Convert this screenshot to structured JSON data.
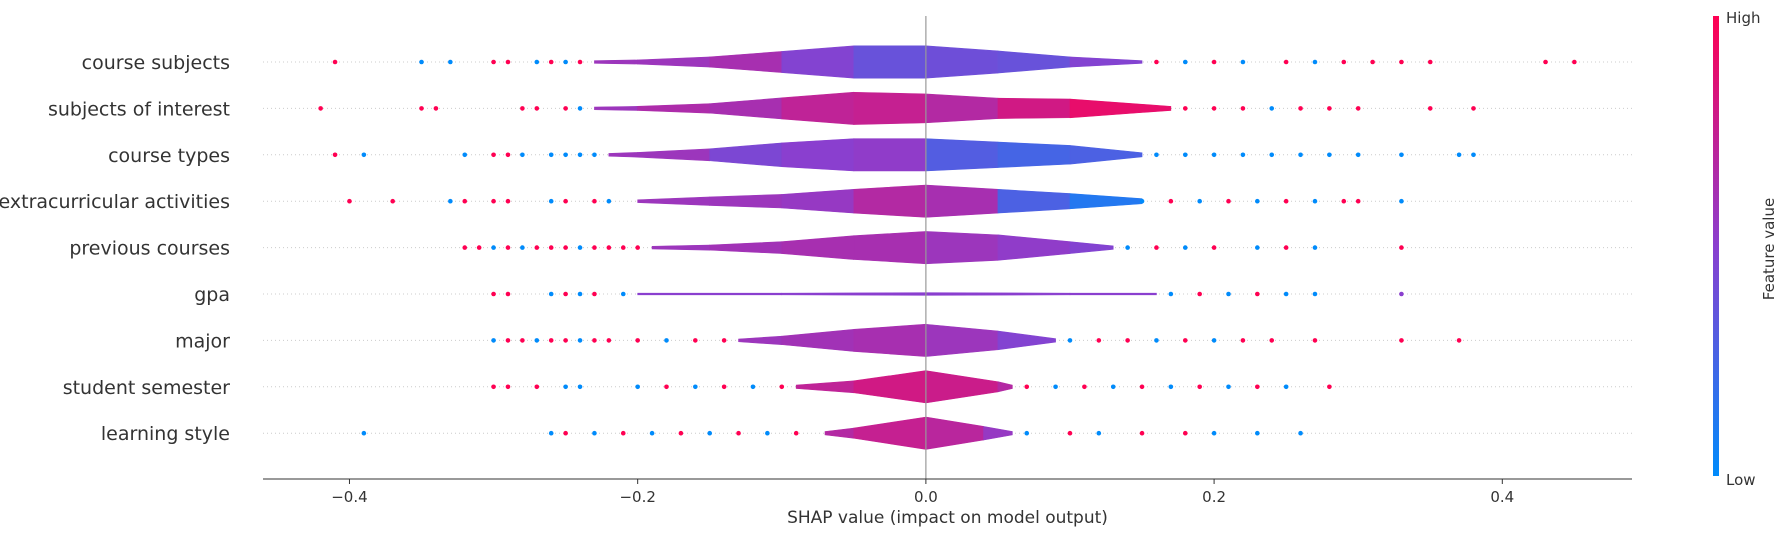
{
  "chart_data": {
    "type": "scatter",
    "subtype": "shap-violin-summary",
    "xlabel": "SHAP value (impact on model output)",
    "xlim": [
      -0.46,
      0.49
    ],
    "x_ticks": [
      -0.4,
      -0.2,
      0.0,
      0.2,
      0.4
    ],
    "x_tick_labels": [
      "−0.4",
      "−0.2",
      "0.0",
      "0.2",
      "0.4"
    ],
    "grid": "dotted horizontal row guides",
    "colorbar": {
      "title": "Feature value",
      "high_label": "High",
      "low_label": "Low",
      "high_color": "#ff0052",
      "low_color": "#008bfb"
    },
    "features": [
      {
        "name": "course subjects",
        "violin_x": [
          -0.23,
          -0.2,
          -0.15,
          -0.1,
          -0.05,
          0.0,
          0.05,
          0.1,
          0.15
        ],
        "violin_w": [
          0.08,
          0.12,
          0.3,
          0.62,
          0.95,
          0.95,
          0.65,
          0.3,
          0.08
        ],
        "violin_c": [
          0.55,
          0.6,
          0.55,
          0.7,
          0.25,
          0.5,
          0.3,
          0.45,
          0.5
        ],
        "points": [
          [
            -0.41,
            1
          ],
          [
            -0.35,
            0
          ],
          [
            -0.33,
            0
          ],
          [
            -0.3,
            1
          ],
          [
            -0.29,
            1
          ],
          [
            -0.27,
            0
          ],
          [
            -0.26,
            1
          ],
          [
            -0.25,
            0
          ],
          [
            -0.24,
            1
          ],
          [
            0.16,
            1
          ],
          [
            0.18,
            0
          ],
          [
            0.2,
            1
          ],
          [
            0.22,
            0
          ],
          [
            0.25,
            1
          ],
          [
            0.27,
            0
          ],
          [
            0.29,
            1
          ],
          [
            0.31,
            1
          ],
          [
            0.33,
            1
          ],
          [
            0.35,
            1
          ],
          [
            0.43,
            1
          ],
          [
            0.45,
            1
          ]
        ]
      },
      {
        "name": "subjects of interest",
        "violin_x": [
          -0.23,
          -0.2,
          -0.15,
          -0.1,
          -0.05,
          0.0,
          0.05,
          0.1,
          0.17
        ],
        "violin_w": [
          0.08,
          0.12,
          0.28,
          0.62,
          0.95,
          0.85,
          0.6,
          0.55,
          0.12
        ],
        "violin_c": [
          0.55,
          0.6,
          0.7,
          0.55,
          0.9,
          0.6,
          0.75,
          0.85,
          0.95
        ],
        "points": [
          [
            -0.42,
            1
          ],
          [
            -0.35,
            1
          ],
          [
            -0.34,
            1
          ],
          [
            -0.28,
            1
          ],
          [
            -0.27,
            1
          ],
          [
            -0.25,
            1
          ],
          [
            -0.24,
            0
          ],
          [
            0.18,
            1
          ],
          [
            0.2,
            1
          ],
          [
            0.22,
            1
          ],
          [
            0.24,
            0
          ],
          [
            0.26,
            1
          ],
          [
            0.28,
            1
          ],
          [
            0.3,
            1
          ],
          [
            0.35,
            1
          ],
          [
            0.38,
            1
          ]
        ]
      },
      {
        "name": "course types",
        "violin_x": [
          -0.22,
          -0.2,
          -0.15,
          -0.1,
          -0.05,
          0.0,
          0.05,
          0.1,
          0.15
        ],
        "violin_w": [
          0.08,
          0.14,
          0.35,
          0.7,
          0.95,
          0.95,
          0.75,
          0.55,
          0.12
        ],
        "violin_c": [
          0.55,
          0.6,
          0.55,
          0.35,
          0.65,
          0.4,
          0.2,
          0.3,
          0.25
        ],
        "points": [
          [
            -0.41,
            1
          ],
          [
            -0.39,
            0
          ],
          [
            -0.32,
            0
          ],
          [
            -0.3,
            1
          ],
          [
            -0.29,
            1
          ],
          [
            -0.28,
            0
          ],
          [
            -0.26,
            0
          ],
          [
            -0.25,
            0
          ],
          [
            -0.24,
            0
          ],
          [
            -0.23,
            0
          ],
          [
            0.16,
            0
          ],
          [
            0.18,
            0
          ],
          [
            0.2,
            0
          ],
          [
            0.22,
            0
          ],
          [
            0.24,
            0
          ],
          [
            0.26,
            0
          ],
          [
            0.28,
            0
          ],
          [
            0.3,
            0
          ],
          [
            0.33,
            0
          ],
          [
            0.37,
            0
          ],
          [
            0.38,
            0
          ]
        ]
      },
      {
        "name": "extracurricular activities",
        "violin_x": [
          -0.2,
          -0.15,
          -0.1,
          -0.05,
          0.0,
          0.05,
          0.1,
          0.15
        ],
        "violin_w": [
          0.08,
          0.25,
          0.4,
          0.7,
          0.95,
          0.7,
          0.45,
          0.15
        ],
        "violin_c": [
          0.6,
          0.55,
          0.6,
          0.5,
          0.85,
          0.4,
          0.15,
          0.1
        ],
        "points": [
          [
            -0.4,
            1
          ],
          [
            -0.37,
            1
          ],
          [
            -0.33,
            0
          ],
          [
            -0.32,
            1
          ],
          [
            -0.3,
            1
          ],
          [
            -0.29,
            1
          ],
          [
            -0.26,
            0
          ],
          [
            -0.25,
            1
          ],
          [
            -0.23,
            1
          ],
          [
            -0.22,
            0
          ],
          [
            0.15,
            0
          ],
          [
            0.17,
            1
          ],
          [
            0.19,
            0
          ],
          [
            0.21,
            1
          ],
          [
            0.23,
            0
          ],
          [
            0.25,
            1
          ],
          [
            0.27,
            0
          ],
          [
            0.29,
            1
          ],
          [
            0.3,
            1
          ],
          [
            0.33,
            0
          ]
        ]
      },
      {
        "name": "previous courses",
        "violin_x": [
          -0.19,
          -0.15,
          -0.1,
          -0.05,
          0.0,
          0.05,
          0.1,
          0.13
        ],
        "violin_w": [
          0.08,
          0.15,
          0.35,
          0.7,
          0.95,
          0.75,
          0.35,
          0.1
        ],
        "violin_c": [
          0.55,
          0.6,
          0.6,
          0.65,
          0.6,
          0.55,
          0.5,
          0.45
        ],
        "points": [
          [
            -0.32,
            1
          ],
          [
            -0.31,
            1
          ],
          [
            -0.3,
            0
          ],
          [
            -0.29,
            1
          ],
          [
            -0.28,
            0
          ],
          [
            -0.27,
            1
          ],
          [
            -0.26,
            1
          ],
          [
            -0.25,
            1
          ],
          [
            -0.24,
            0
          ],
          [
            -0.23,
            1
          ],
          [
            -0.22,
            1
          ],
          [
            -0.21,
            1
          ],
          [
            -0.2,
            1
          ],
          [
            0.14,
            0
          ],
          [
            0.16,
            1
          ],
          [
            0.18,
            0
          ],
          [
            0.2,
            1
          ],
          [
            0.23,
            0
          ],
          [
            0.25,
            1
          ],
          [
            0.27,
            0
          ],
          [
            0.33,
            1
          ]
        ]
      },
      {
        "name": "gpa",
        "violin_x": [
          -0.2,
          -0.1,
          0.0,
          0.1,
          0.16
        ],
        "violin_w": [
          0.05,
          0.05,
          0.08,
          0.05,
          0.05
        ],
        "violin_c": [
          0.5,
          0.5,
          0.5,
          0.5,
          0.5
        ],
        "points": [
          [
            -0.3,
            1
          ],
          [
            -0.29,
            1
          ],
          [
            -0.26,
            0
          ],
          [
            -0.25,
            1
          ],
          [
            -0.24,
            0
          ],
          [
            -0.23,
            1
          ],
          [
            -0.21,
            0
          ],
          [
            0.17,
            0
          ],
          [
            0.19,
            1
          ],
          [
            0.21,
            0
          ],
          [
            0.23,
            1
          ],
          [
            0.25,
            0
          ],
          [
            0.27,
            0
          ],
          [
            0.33,
            0.5
          ]
        ]
      },
      {
        "name": "major",
        "violin_x": [
          -0.13,
          -0.1,
          -0.05,
          0.0,
          0.05,
          0.09
        ],
        "violin_w": [
          0.08,
          0.25,
          0.65,
          0.95,
          0.55,
          0.1
        ],
        "violin_c": [
          0.55,
          0.6,
          0.6,
          0.65,
          0.5,
          0.45
        ],
        "points": [
          [
            -0.3,
            0
          ],
          [
            -0.29,
            1
          ],
          [
            -0.28,
            1
          ],
          [
            -0.27,
            0
          ],
          [
            -0.26,
            1
          ],
          [
            -0.25,
            1
          ],
          [
            -0.24,
            0
          ],
          [
            -0.23,
            1
          ],
          [
            -0.22,
            1
          ],
          [
            -0.2,
            1
          ],
          [
            -0.18,
            0
          ],
          [
            -0.16,
            1
          ],
          [
            -0.14,
            1
          ],
          [
            0.1,
            0
          ],
          [
            0.12,
            1
          ],
          [
            0.14,
            1
          ],
          [
            0.16,
            0
          ],
          [
            0.18,
            1
          ],
          [
            0.2,
            0
          ],
          [
            0.22,
            1
          ],
          [
            0.24,
            1
          ],
          [
            0.27,
            1
          ],
          [
            0.33,
            1
          ],
          [
            0.37,
            1
          ]
        ]
      },
      {
        "name": "student semester",
        "violin_x": [
          -0.09,
          -0.05,
          0.0,
          0.05,
          0.06
        ],
        "violin_w": [
          0.1,
          0.35,
          0.95,
          0.3,
          0.1
        ],
        "violin_c": [
          0.7,
          0.75,
          0.85,
          0.7,
          0.65
        ],
        "points": [
          [
            -0.3,
            1
          ],
          [
            -0.29,
            1
          ],
          [
            -0.27,
            1
          ],
          [
            -0.25,
            0
          ],
          [
            -0.24,
            0
          ],
          [
            -0.2,
            0
          ],
          [
            -0.18,
            1
          ],
          [
            -0.16,
            0
          ],
          [
            -0.14,
            1
          ],
          [
            -0.12,
            0
          ],
          [
            -0.1,
            1
          ],
          [
            0.07,
            1
          ],
          [
            0.09,
            0
          ],
          [
            0.11,
            1
          ],
          [
            0.13,
            0
          ],
          [
            0.15,
            1
          ],
          [
            0.17,
            0
          ],
          [
            0.19,
            1
          ],
          [
            0.21,
            0
          ],
          [
            0.23,
            1
          ],
          [
            0.25,
            0
          ],
          [
            0.28,
            1
          ]
        ]
      },
      {
        "name": "learning style",
        "violin_x": [
          -0.07,
          -0.05,
          0.0,
          0.04,
          0.06
        ],
        "violin_w": [
          0.1,
          0.3,
          0.95,
          0.4,
          0.1
        ],
        "violin_c": [
          0.65,
          0.7,
          0.8,
          0.6,
          0.5
        ],
        "points": [
          [
            -0.39,
            0
          ],
          [
            -0.26,
            0
          ],
          [
            -0.25,
            1
          ],
          [
            -0.23,
            0
          ],
          [
            -0.21,
            1
          ],
          [
            -0.19,
            0
          ],
          [
            -0.17,
            1
          ],
          [
            -0.15,
            0
          ],
          [
            -0.13,
            1
          ],
          [
            -0.11,
            0
          ],
          [
            -0.09,
            1
          ],
          [
            0.07,
            0
          ],
          [
            0.1,
            1
          ],
          [
            0.12,
            0
          ],
          [
            0.15,
            1
          ],
          [
            0.18,
            1
          ],
          [
            0.2,
            0
          ],
          [
            0.23,
            0
          ],
          [
            0.26,
            0
          ]
        ]
      }
    ]
  }
}
